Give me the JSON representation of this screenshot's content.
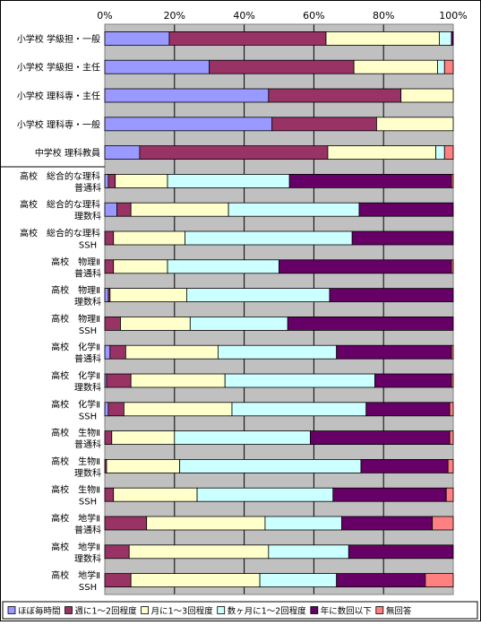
{
  "chart_data": {
    "type": "bar",
    "orientation": "horizontal",
    "stacked": "percent",
    "title": "",
    "xlabel": "",
    "ylabel": "",
    "xlim": [
      0,
      100
    ],
    "x_ticks": [
      "0%",
      "20%",
      "40%",
      "60%",
      "80%",
      "100%"
    ],
    "grid": true,
    "legend_position": "bottom",
    "categories": [
      [
        "小学校 学級担・一般"
      ],
      [
        "小学校 学級担・主任"
      ],
      [
        "小学校 理科専・主任"
      ],
      [
        "小学校 理科専・一般"
      ],
      [
        "中学校 理科教員"
      ],
      [
        "高校　総合的な理科",
        "普通科"
      ],
      [
        "高校　総合的な理科",
        "理数科"
      ],
      [
        "高校　総合的な理科",
        "SSH"
      ],
      [
        "高校　物理Ⅱ",
        "普通科"
      ],
      [
        "高校　物理Ⅱ",
        "理数科"
      ],
      [
        "高校　物理Ⅱ",
        "SSH"
      ],
      [
        "高校　化学Ⅱ",
        "普通科"
      ],
      [
        "高校　化学Ⅱ",
        "理数科"
      ],
      [
        "高校　化学Ⅱ",
        "SSH"
      ],
      [
        "高校　生物Ⅱ",
        "普通科"
      ],
      [
        "高校　生物Ⅱ",
        "理数科"
      ],
      [
        "高校　生物Ⅱ",
        "SSH"
      ],
      [
        "高校　地学Ⅱ",
        "普通科"
      ],
      [
        "高校　地学Ⅱ",
        "理数科"
      ],
      [
        "高校　地学Ⅱ",
        "SSH"
      ]
    ],
    "series": [
      {
        "name": "ほぼ毎時間",
        "color": "#9999FF",
        "values": [
          18.5,
          30,
          47,
          48,
          10,
          1,
          3.5,
          0,
          0,
          1,
          0,
          1.5,
          0.5,
          1,
          0,
          0,
          0,
          0,
          0,
          0
        ]
      },
      {
        "name": "週に1～2回程度",
        "color": "#993366",
        "values": [
          45,
          41.5,
          38,
          30,
          54,
          2,
          4,
          2.5,
          2.5,
          0.5,
          4.5,
          4.5,
          7,
          4.5,
          2,
          0.5,
          2.5,
          12,
          7,
          7.5
        ]
      },
      {
        "name": "月に1～3回程度",
        "color": "#FFFFCC",
        "values": [
          32.5,
          24,
          15,
          22,
          31,
          15,
          28,
          20.5,
          15.5,
          22,
          20,
          26.5,
          27,
          31,
          18,
          21,
          24,
          34,
          40,
          37
        ]
      },
      {
        "name": "数ヶ月に1～2回程度",
        "color": "#CCFFFF",
        "values": [
          3.5,
          2,
          0,
          0,
          2.5,
          35,
          37.5,
          48,
          32,
          41,
          28,
          34,
          43,
          38.5,
          39,
          52,
          39,
          22,
          23,
          22
        ]
      },
      {
        "name": "年に数回以下",
        "color": "#660066",
        "values": [
          0.5,
          0,
          0,
          0,
          0,
          46.5,
          27,
          29,
          49.5,
          35.5,
          47.5,
          33,
          22,
          24,
          40,
          25,
          32.5,
          26,
          30,
          25.5
        ]
      },
      {
        "name": "無回答",
        "color": "#FF8080",
        "values": [
          0,
          2.5,
          0,
          0,
          2.5,
          0.5,
          0,
          0,
          0.5,
          0,
          0,
          0.5,
          0.5,
          1,
          1,
          1.5,
          2,
          6,
          0,
          8
        ]
      }
    ]
  }
}
